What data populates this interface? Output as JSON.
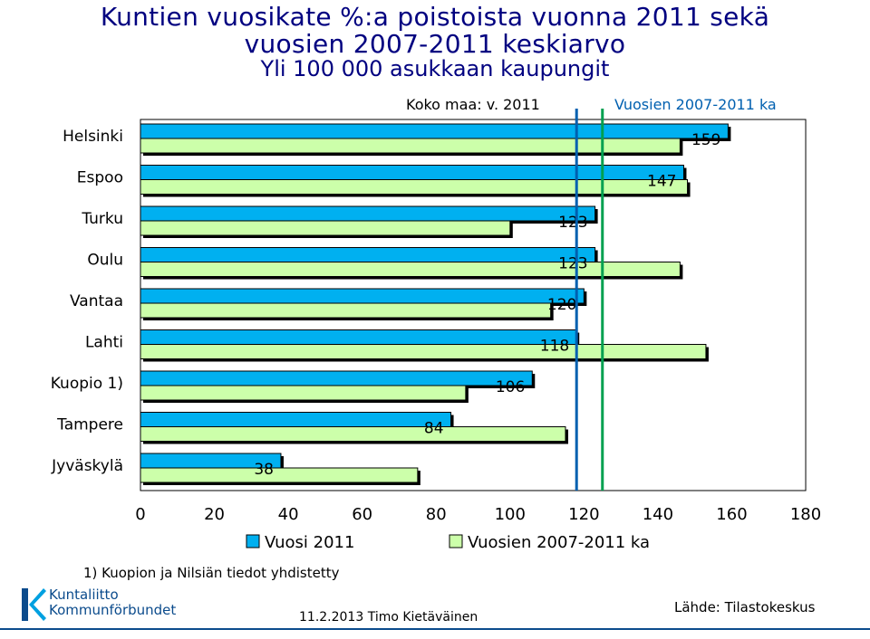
{
  "chart_data": {
    "type": "bar",
    "orientation": "horizontal",
    "title_lines": [
      "Kuntien vuosikate %:a poistoista vuonna 2011 sekä",
      "vuosien 2007-2011 keskiarvo",
      "Yli 100 000 asukkaan kaupungit"
    ],
    "categories": [
      "Helsinki",
      "Espoo",
      "Turku",
      "Oulu",
      "Vantaa",
      "Lahti",
      "Kuopio 1)",
      "Tampere",
      "Jyväskylä"
    ],
    "series": [
      {
        "name": "Vuosi 2011",
        "color": "#00b0f0",
        "values": [
          159,
          147,
          123,
          123,
          120,
          118,
          106,
          84,
          38
        ],
        "labels": [
          "159",
          "147",
          "123",
          "123",
          "120",
          "118",
          "106",
          "84",
          "38"
        ]
      },
      {
        "name": "Vuosien 2007-2011 ka",
        "color": "#ccffaa",
        "values": [
          146,
          148,
          100,
          146,
          111,
          153,
          88,
          115,
          75
        ]
      }
    ],
    "reference_lines": [
      {
        "label": "Koko maa: v. 2011",
        "value": 118,
        "color": "#0060b0"
      },
      {
        "label": "Vuosien 2007-2011 ka",
        "value": 125,
        "color": "#00a050"
      }
    ],
    "x_ticks": [
      "0",
      "20",
      "40",
      "60",
      "80",
      "100",
      "120",
      "140",
      "160",
      "180"
    ],
    "xlim": [
      0,
      180
    ],
    "grid": false,
    "legend_position": "bottom"
  },
  "footnote": "1) Kuopion ja Nilsiän tiedot yhdistetty",
  "logo": {
    "line1": "Kuntaliitto",
    "line2": "Kommunförbundet"
  },
  "date_author": "11.2.2013 Timo Kietäväinen",
  "source": "Lähde: Tilastokeskus"
}
